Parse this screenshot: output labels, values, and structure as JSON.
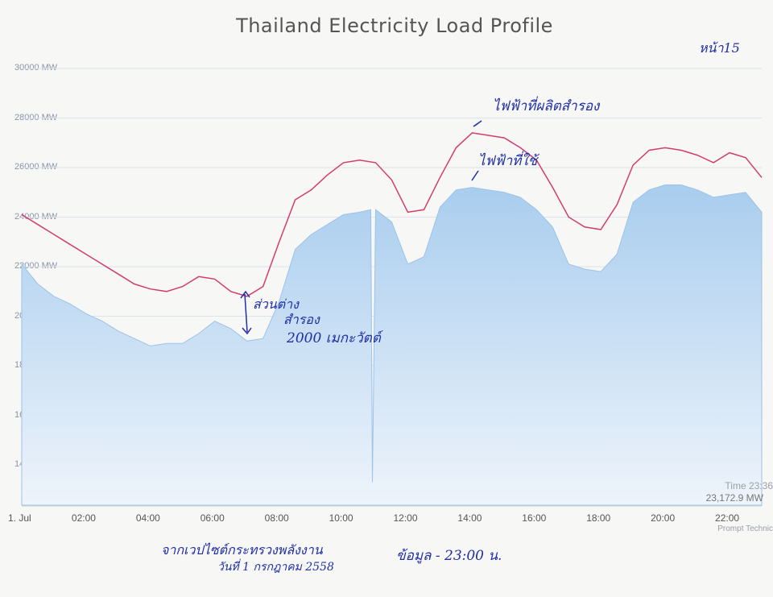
{
  "chart_data": {
    "type": "area",
    "title": "Thailand Electricity Load Profile",
    "y_ticks": [
      "30000 MW",
      "28000 MW",
      "26000 MW",
      "24000 MW",
      "22000 MW",
      "20000 MW",
      "18000 MW",
      "16000 MW",
      "14000 MW"
    ],
    "x_ticks": [
      "1. Jul",
      "02:00",
      "04:00",
      "06:00",
      "08:00",
      "10:00",
      "12:00",
      "14:00",
      "16:00",
      "18:00",
      "20:00",
      "22:00"
    ],
    "ylim": [
      13000,
      30000
    ],
    "grid": true,
    "series": [
      {
        "name": "ไฟฟ้าที่ผลิตสำรอง",
        "type": "line",
        "color": "#d23d6f",
        "x": [
          0,
          0.5,
          1,
          1.5,
          2,
          2.5,
          3,
          3.5,
          4,
          4.5,
          5,
          5.5,
          6,
          6.5,
          7,
          7.5,
          8,
          8.5,
          9,
          9.5,
          10,
          10.5,
          11,
          11.5,
          12,
          12.5,
          13,
          13.5,
          14,
          14.5,
          15,
          15.5,
          16,
          16.5,
          17,
          17.5,
          18,
          18.5,
          19,
          19.5,
          20,
          20.5,
          21,
          21.5,
          22,
          22.5,
          23
        ],
        "values": [
          24100,
          23700,
          23300,
          22900,
          22500,
          22100,
          21700,
          21300,
          21100,
          21000,
          21200,
          21600,
          21500,
          21000,
          20800,
          21200,
          23000,
          24700,
          25100,
          25700,
          26200,
          26300,
          26200,
          25500,
          24200,
          24300,
          25600,
          26800,
          27400,
          27300,
          27200,
          26800,
          26300,
          25200,
          24000,
          23600,
          23500,
          24500,
          26100,
          26700,
          26800,
          26700,
          26500,
          26200,
          26600,
          26400,
          25600
        ]
      },
      {
        "name": "ไฟฟ้าที่ใช้",
        "type": "area",
        "color": "#4a8fd6",
        "x": [
          0,
          0.5,
          1,
          1.5,
          2,
          2.5,
          3,
          3.5,
          4,
          4.5,
          5,
          5.5,
          6,
          6.5,
          7,
          7.5,
          8,
          8.5,
          9,
          9.5,
          10,
          10.5,
          10.85,
          10.9,
          11,
          11.5,
          12,
          12.5,
          13,
          13.5,
          14,
          14.5,
          15,
          15.5,
          16,
          16.5,
          17,
          17.5,
          18,
          18.5,
          19,
          19.5,
          20,
          20.5,
          21,
          21.5,
          22,
          22.5,
          23
        ],
        "values": [
          22100,
          21300,
          20800,
          20500,
          20100,
          19800,
          19400,
          19100,
          18800,
          18900,
          18900,
          19300,
          19800,
          19500,
          19000,
          19100,
          20600,
          22700,
          23300,
          23700,
          24100,
          24200,
          24300,
          13300,
          24300,
          23800,
          22100,
          22400,
          24400,
          25100,
          25200,
          25100,
          25000,
          24800,
          24300,
          23600,
          22100,
          21900,
          21800,
          22500,
          24600,
          25100,
          25300,
          25300,
          25100,
          24800,
          24900,
          25000,
          24200
        ]
      }
    ],
    "info_time": "Time 23:36",
    "info_value": "23,172.9 MW",
    "credit": "Prompt Technic"
  },
  "annotations": {
    "page_ref": "หน้า15",
    "reserve": "ไฟฟ้าที่ผลิตสำรอง",
    "demand": "ไฟฟ้าที่ใช้",
    "diff_line1": "ส่วนต่าง",
    "diff_line2": "สำรอง",
    "diff_line3": "2000 เมกะวัตต์",
    "source_line1": "จากเวปไซต์กระทรวงพลังงาน",
    "source_line2": "วันที่ 1 กรกฎาคม 2558",
    "data_time": "ข้อมูล - 23:00 น."
  }
}
